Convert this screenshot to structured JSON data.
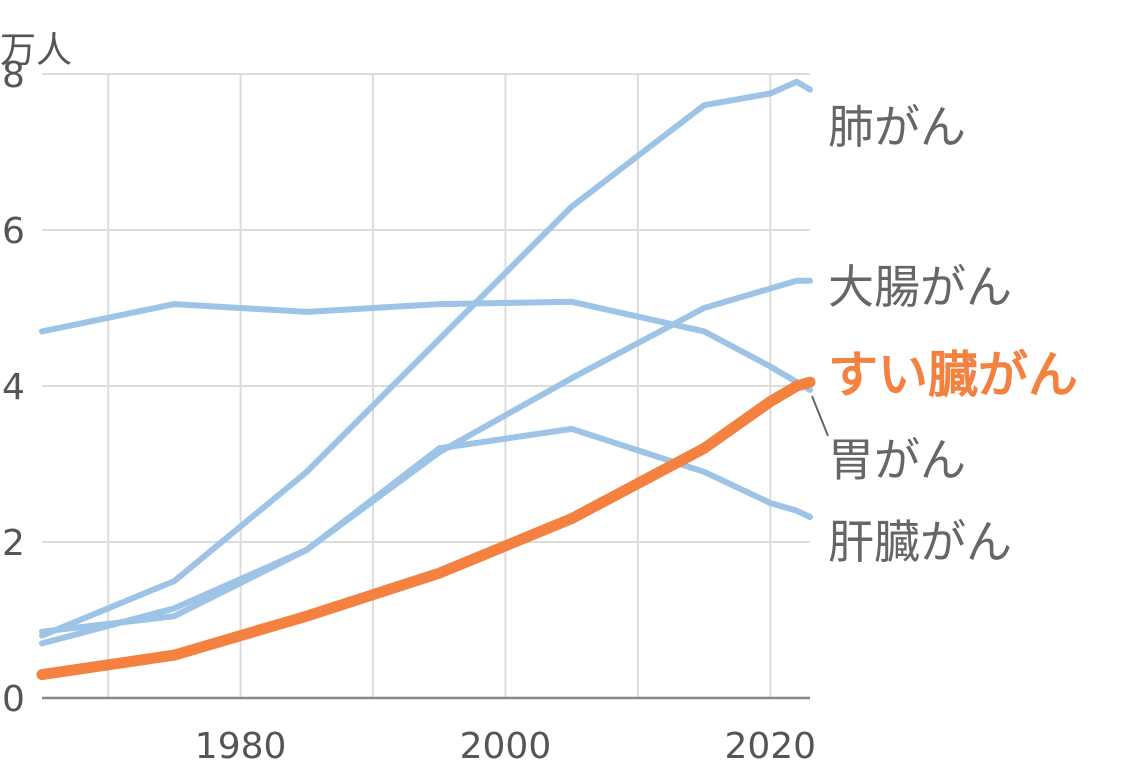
{
  "chart_data": {
    "type": "line",
    "title": "",
    "xlabel": "",
    "ylabel": "",
    "y_unit": "万人",
    "xlim": [
      1965,
      2023
    ],
    "ylim": [
      0,
      8
    ],
    "x_ticks": [
      1980,
      2000,
      2020
    ],
    "y_ticks": [
      0,
      2,
      4,
      6,
      8
    ],
    "x_gridlines": [
      1970,
      1980,
      1990,
      2000,
      2010,
      2020
    ],
    "grid": true,
    "legend": "none (series labeled at right end of lines)",
    "series": [
      {
        "name": "肺がん",
        "color": "#9dc3e6",
        "highlight": false,
        "points": [
          [
            1965,
            0.8
          ],
          [
            1975,
            1.5
          ],
          [
            1985,
            2.9
          ],
          [
            1995,
            4.6
          ],
          [
            2005,
            6.3
          ],
          [
            2015,
            7.6
          ],
          [
            2020,
            7.75
          ],
          [
            2022,
            7.9
          ],
          [
            2023,
            7.8
          ]
        ]
      },
      {
        "name": "大腸がん",
        "color": "#9dc3e6",
        "highlight": false,
        "points": [
          [
            1965,
            0.7
          ],
          [
            1975,
            1.15
          ],
          [
            1985,
            1.9
          ],
          [
            1995,
            3.15
          ],
          [
            2005,
            4.1
          ],
          [
            2015,
            5.0
          ],
          [
            2020,
            5.25
          ],
          [
            2022,
            5.35
          ],
          [
            2023,
            5.35
          ]
        ]
      },
      {
        "name": "胃がん",
        "color": "#9dc3e6",
        "highlight": false,
        "points": [
          [
            1965,
            4.7
          ],
          [
            1975,
            5.05
          ],
          [
            1985,
            4.95
          ],
          [
            1995,
            5.05
          ],
          [
            2005,
            5.08
          ],
          [
            2015,
            4.7
          ],
          [
            2020,
            4.25
          ],
          [
            2022,
            4.05
          ],
          [
            2023,
            3.95
          ]
        ]
      },
      {
        "name": "肝臓がん",
        "color": "#9dc3e6",
        "highlight": false,
        "points": [
          [
            1965,
            0.85
          ],
          [
            1975,
            1.05
          ],
          [
            1985,
            1.9
          ],
          [
            1995,
            3.2
          ],
          [
            2005,
            3.45
          ],
          [
            2015,
            2.9
          ],
          [
            2020,
            2.5
          ],
          [
            2022,
            2.4
          ],
          [
            2023,
            2.32
          ]
        ]
      },
      {
        "name": "すい臓がん",
        "color": "#f4813f",
        "highlight": true,
        "points": [
          [
            1965,
            0.3
          ],
          [
            1975,
            0.55
          ],
          [
            1985,
            1.05
          ],
          [
            1995,
            1.6
          ],
          [
            2005,
            2.3
          ],
          [
            2015,
            3.2
          ],
          [
            2020,
            3.8
          ],
          [
            2022,
            4.0
          ],
          [
            2023,
            4.05
          ]
        ]
      }
    ]
  }
}
